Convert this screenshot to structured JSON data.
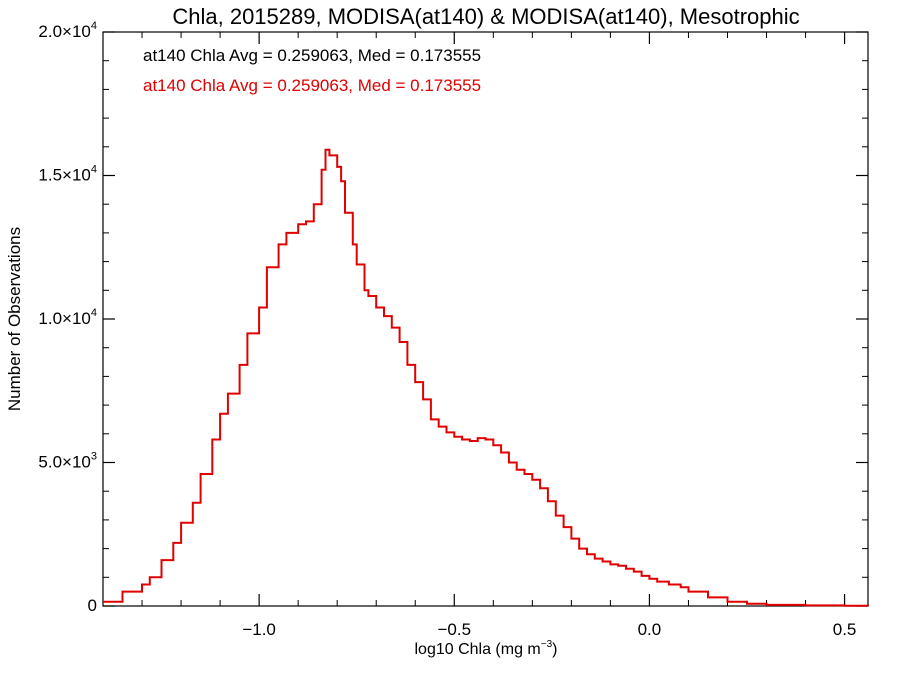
{
  "chart_data": {
    "type": "step",
    "title": "Chla, 2015289, MODISA(at140) & MODISA(at140), Mesotrophic",
    "xlabel_base": "log10 Chla (mg m",
    "xlabel_sup": "−3",
    "xlabel_end": ")",
    "ylabel": "Number of Observations",
    "xlim": [
      -1.4,
      0.56
    ],
    "ylim": [
      0,
      20000
    ],
    "xticks": [
      {
        "value": -1.0,
        "label": "−1.0"
      },
      {
        "value": -0.5,
        "label": "−0.5"
      },
      {
        "value": 0.0,
        "label": "0.0"
      },
      {
        "value": 0.5,
        "label": "0.5"
      }
    ],
    "yticks": [
      {
        "value": 0,
        "mant": "0",
        "exp": ""
      },
      {
        "value": 5000,
        "mant": "5.0×10",
        "exp": "3"
      },
      {
        "value": 10000,
        "mant": "1.0×10",
        "exp": "4"
      },
      {
        "value": 15000,
        "mant": "1.5×10",
        "exp": "4"
      },
      {
        "value": 20000,
        "mant": "2.0×10",
        "exp": "4"
      }
    ],
    "series": [
      {
        "name": "at140 Chla Avg = 0.259063, Med = 0.173555",
        "color": "#000000",
        "x": [
          -1.4,
          -1.35,
          -1.3,
          -1.28,
          -1.25,
          -1.22,
          -1.2,
          -1.17,
          -1.15,
          -1.12,
          -1.1,
          -1.08,
          -1.05,
          -1.03,
          -1.0,
          -0.98,
          -0.95,
          -0.93,
          -0.9,
          -0.88,
          -0.86,
          -0.84,
          -0.83,
          -0.82,
          -0.8,
          -0.79,
          -0.78,
          -0.76,
          -0.75,
          -0.73,
          -0.72,
          -0.7,
          -0.68,
          -0.66,
          -0.64,
          -0.62,
          -0.6,
          -0.58,
          -0.56,
          -0.54,
          -0.52,
          -0.5,
          -0.48,
          -0.46,
          -0.44,
          -0.42,
          -0.4,
          -0.38,
          -0.36,
          -0.34,
          -0.32,
          -0.3,
          -0.28,
          -0.26,
          -0.24,
          -0.22,
          -0.2,
          -0.18,
          -0.16,
          -0.14,
          -0.12,
          -0.1,
          -0.08,
          -0.06,
          -0.04,
          -0.02,
          0.0,
          0.02,
          0.05,
          0.08,
          0.1,
          0.15,
          0.2,
          0.25,
          0.3,
          0.4,
          0.5,
          0.56
        ],
        "y": [
          150,
          500,
          750,
          1000,
          1600,
          2200,
          2900,
          3600,
          4600,
          5800,
          6700,
          7400,
          8400,
          9500,
          10400,
          11800,
          12600,
          13000,
          13300,
          13400,
          14000,
          15200,
          15900,
          15700,
          15300,
          14800,
          13700,
          12600,
          11900,
          11000,
          10800,
          10400,
          10100,
          9700,
          9200,
          8400,
          7800,
          7200,
          6500,
          6250,
          6050,
          5900,
          5800,
          5750,
          5850,
          5800,
          5600,
          5350,
          5000,
          4750,
          4600,
          4400,
          4100,
          3650,
          3150,
          2750,
          2350,
          2000,
          1800,
          1650,
          1550,
          1450,
          1400,
          1300,
          1200,
          1050,
          950,
          850,
          750,
          650,
          500,
          300,
          150,
          80,
          40,
          20,
          10,
          0
        ]
      },
      {
        "name": "at140 Chla Avg = 0.259063, Med = 0.173555",
        "color": "#e00000"
      }
    ]
  }
}
